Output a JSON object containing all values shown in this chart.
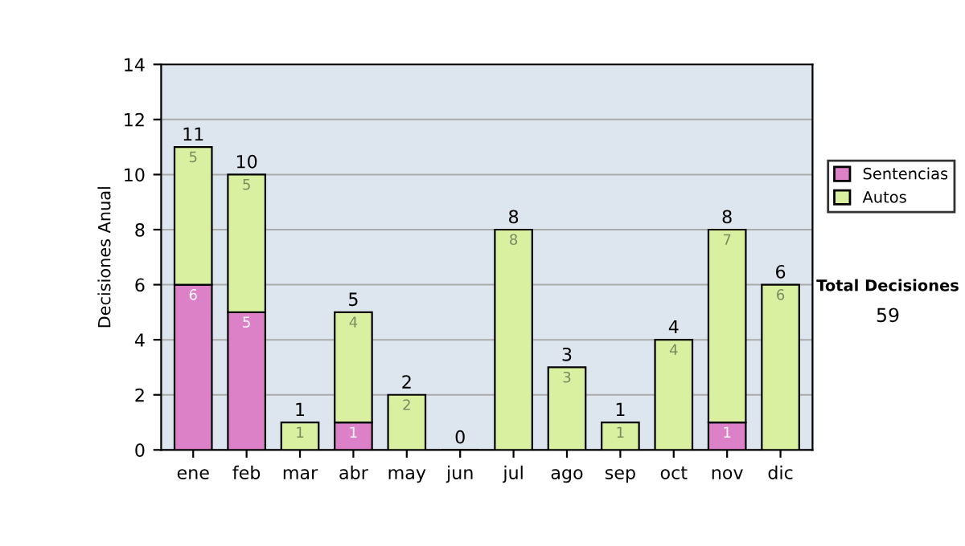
{
  "chart_data": {
    "type": "bar",
    "stacked": true,
    "ylabel": "Decisiones Anual",
    "categories": [
      "ene",
      "feb",
      "mar",
      "abr",
      "may",
      "jun",
      "jul",
      "ago",
      "sep",
      "oct",
      "nov",
      "dic"
    ],
    "series": [
      {
        "name": "Sentencias",
        "color": "#dc80c8",
        "values": [
          6,
          5,
          0,
          1,
          0,
          0,
          0,
          0,
          0,
          0,
          1,
          0
        ],
        "value_labels": [
          "6",
          "5",
          null,
          "1",
          null,
          null,
          null,
          null,
          null,
          null,
          "1",
          null
        ]
      },
      {
        "name": "Autos",
        "color": "#d8f0a0",
        "values": [
          5,
          5,
          1,
          4,
          2,
          0,
          8,
          3,
          1,
          4,
          7,
          6
        ],
        "value_labels": [
          "5",
          "5",
          "1",
          "4",
          "2",
          null,
          "8",
          "3",
          "1",
          "4",
          "7",
          "6"
        ]
      }
    ],
    "totals": [
      "11",
      "10",
      "1",
      "5",
      "2",
      "0",
      "8",
      "3",
      "1",
      "4",
      "8",
      "6"
    ],
    "ylim": [
      0,
      14
    ],
    "yticks": [
      0,
      2,
      4,
      6,
      8,
      10,
      12,
      14
    ],
    "grid": "y",
    "legend": "right",
    "annotations": [
      "Total Decisiones",
      "59"
    ]
  }
}
